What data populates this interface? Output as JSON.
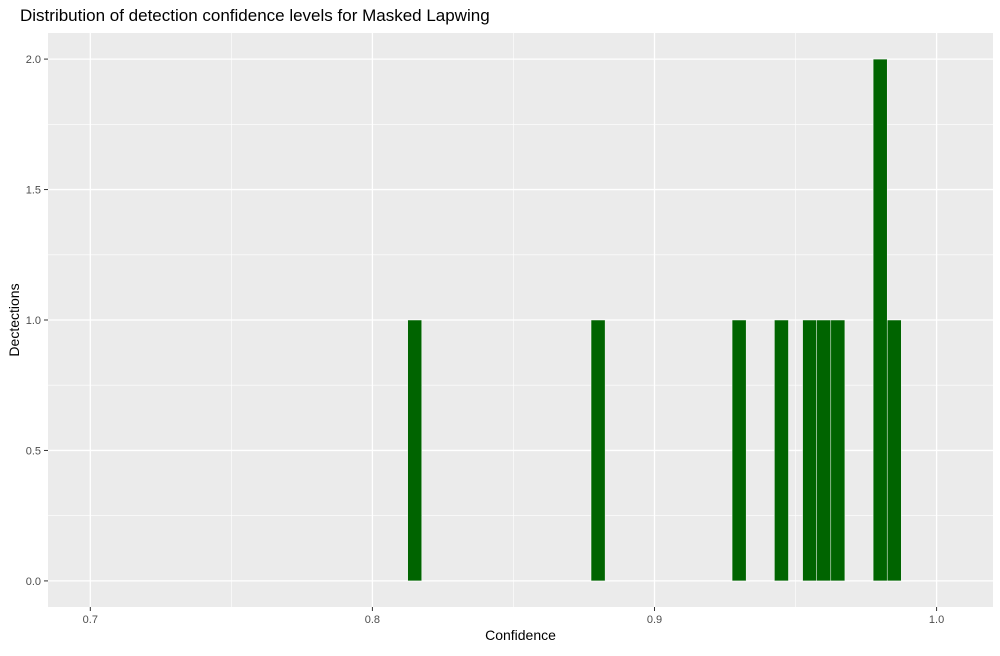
{
  "chart_data": {
    "type": "bar",
    "title": "Distribution of detection confidence levels for Masked Lapwing",
    "xlabel": "Confidence",
    "ylabel": "Dectections",
    "xlim": [
      0.685,
      1.02
    ],
    "ylim": [
      -0.1,
      2.1
    ],
    "x_ticks": [
      0.7,
      0.8,
      0.9,
      1.0
    ],
    "x_tick_labels": [
      "0.7",
      "0.8",
      "0.9",
      "1.0"
    ],
    "y_ticks": [
      0.0,
      0.5,
      1.0,
      1.5,
      2.0
    ],
    "y_tick_labels": [
      "0.0",
      "0.5",
      "1.0",
      "1.5",
      "2.0"
    ],
    "bin_width": 0.005,
    "bars": [
      {
        "x": 0.815,
        "count": 1
      },
      {
        "x": 0.88,
        "count": 1
      },
      {
        "x": 0.93,
        "count": 1
      },
      {
        "x": 0.945,
        "count": 1
      },
      {
        "x": 0.955,
        "count": 1
      },
      {
        "x": 0.96,
        "count": 1
      },
      {
        "x": 0.965,
        "count": 1
      },
      {
        "x": 0.98,
        "count": 2
      },
      {
        "x": 0.985,
        "count": 1
      }
    ],
    "bar_color": "#006400",
    "panel_background": "#ebebeb",
    "grid": true,
    "grid_color": "#ffffff",
    "legend": "none"
  }
}
